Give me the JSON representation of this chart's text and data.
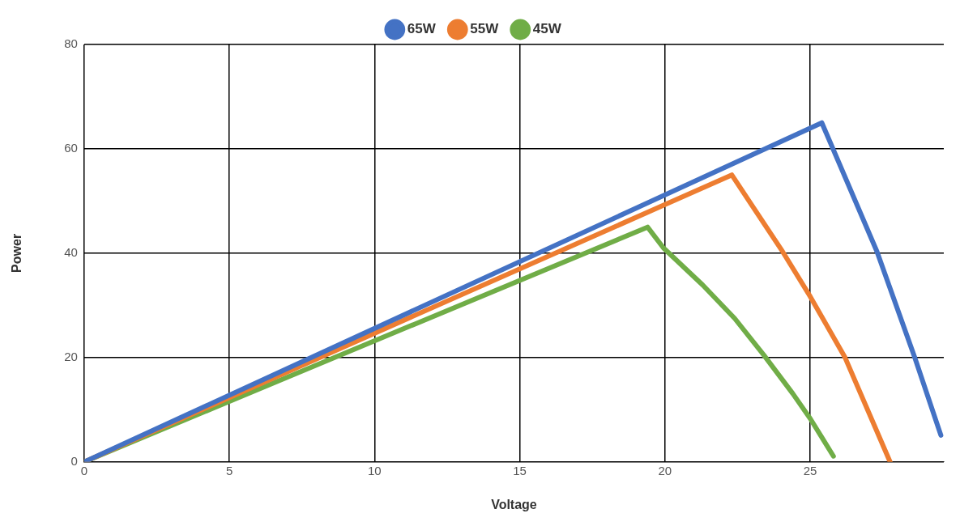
{
  "chart_data": {
    "type": "line",
    "xlabel": "Voltage",
    "ylabel": "Power",
    "xlim": [
      0,
      29.6
    ],
    "xticks": [
      0,
      5,
      10,
      15,
      20,
      25
    ],
    "ylim": [
      0,
      80
    ],
    "yticks": [
      0,
      20,
      40,
      60,
      80
    ],
    "grid": true,
    "legend": "top",
    "marker": "none",
    "line_style": "solid",
    "series": [
      {
        "name": "65W",
        "color": "#4472c4",
        "x": [
          0,
          25.4,
          27.3,
          28.6,
          29.5
        ],
        "values": [
          0,
          65,
          40.3,
          20,
          5.1
        ]
      },
      {
        "name": "55W",
        "color": "#ed7d31",
        "x": [
          0,
          22.3,
          24.05,
          25,
          26.2,
          27.75
        ],
        "values": [
          0,
          55,
          40.3,
          31.7,
          20,
          0
        ]
      },
      {
        "name": "45W",
        "color": "#70ad47",
        "x": [
          0,
          19.4,
          19.95,
          21.3,
          22.4,
          23.4,
          24.4,
          25,
          25.8
        ],
        "values": [
          0,
          45,
          41,
          33.9,
          27.5,
          20.5,
          13.1,
          8.3,
          1.1
        ]
      }
    ]
  }
}
